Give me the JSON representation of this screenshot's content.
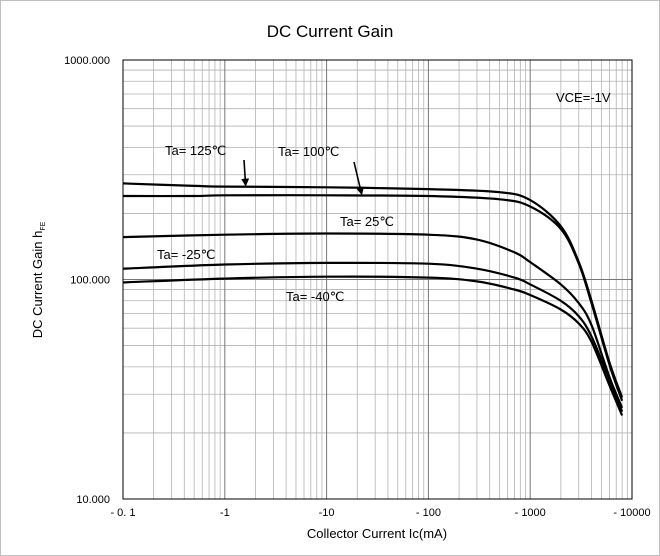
{
  "chart_data": {
    "type": "line",
    "title": "DC Current Gain",
    "xlabel": "Collector Current   Ic(mA)",
    "ylabel_main": "DC Current Gain   h",
    "ylabel_sub": "FE",
    "x_scale": "log",
    "y_scale": "log",
    "xlim": [
      -0.1,
      -10000
    ],
    "ylim": [
      10,
      1000
    ],
    "x_ticks": [
      {
        "value": -0.1,
        "label": "- 0. 1"
      },
      {
        "value": -1,
        "label": "-1"
      },
      {
        "value": -10,
        "label": "-10"
      },
      {
        "value": -100,
        "label": "- 100"
      },
      {
        "value": -1000,
        "label": "- 1000"
      },
      {
        "value": -10000,
        "label": "- 10000"
      }
    ],
    "y_ticks": [
      {
        "value": 10,
        "label": "10.000"
      },
      {
        "value": 100,
        "label": "100.000"
      },
      {
        "value": 1000,
        "label": "1000.000"
      }
    ],
    "grid": true,
    "condition_note": "VCE=-1V",
    "series": [
      {
        "name": "Ta= 125℃",
        "color": "#000000",
        "x": [
          -0.1,
          -0.5,
          -1,
          -10,
          -100,
          -500,
          -1000,
          -2000,
          -3000,
          -4000,
          -6000,
          -8000
        ],
        "y": [
          274,
          267,
          265,
          263,
          258,
          250,
          230,
          175,
          120,
          80,
          42,
          29
        ]
      },
      {
        "name": "Ta= 100℃",
        "color": "#000000",
        "x": [
          -0.1,
          -0.5,
          -1,
          -10,
          -100,
          -500,
          -1000,
          -2000,
          -3000,
          -4000,
          -6000,
          -8000
        ],
        "y": [
          240,
          240,
          242,
          242,
          240,
          232,
          215,
          170,
          118,
          78,
          41,
          28
        ]
      },
      {
        "name": "Ta= 25℃",
        "color": "#000000",
        "x": [
          -0.1,
          -1,
          -10,
          -100,
          -300,
          -700,
          -1000,
          -2000,
          -3000,
          -4000,
          -6000,
          -8000
        ],
        "y": [
          156,
          160,
          162,
          160,
          152,
          133,
          120,
          95,
          78,
          62,
          36,
          26
        ]
      },
      {
        "name": "Ta= -25℃",
        "color": "#000000",
        "x": [
          -0.1,
          -1,
          -10,
          -100,
          -300,
          -700,
          -1000,
          -2000,
          -3000,
          -4000,
          -6000,
          -8000
        ],
        "y": [
          112,
          117,
          119,
          118,
          112,
          102,
          95,
          80,
          68,
          55,
          35,
          25
        ]
      },
      {
        "name": "Ta= -40℃",
        "color": "#000000",
        "x": [
          -0.1,
          -1,
          -10,
          -100,
          -300,
          -700,
          -1000,
          -2000,
          -3000,
          -4000,
          -6000,
          -8000
        ],
        "y": [
          97,
          101,
          103,
          102,
          98,
          90,
          85,
          73,
          63,
          52,
          33,
          24
        ]
      }
    ],
    "annotations": [
      {
        "text": "Ta= 125℃",
        "arrow_to": {
          "x": -1.6,
          "y": 265
        }
      },
      {
        "text": "Ta= 100℃",
        "arrow_to": {
          "x": -22,
          "y": 242
        }
      },
      {
        "text": "Ta= 25℃"
      },
      {
        "text": "Ta= -25℃"
      },
      {
        "text": "Ta= -40℃"
      }
    ]
  }
}
